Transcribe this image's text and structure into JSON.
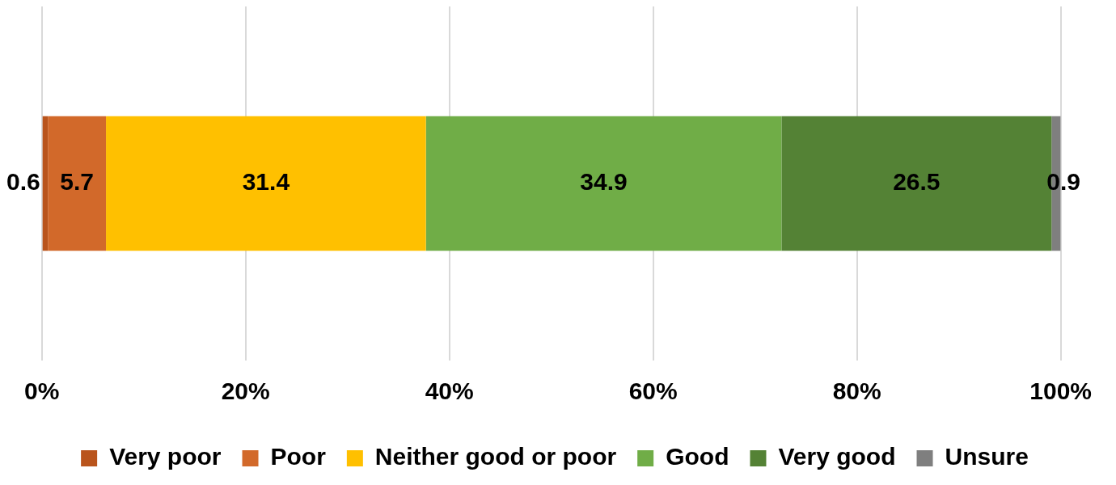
{
  "chart_data": {
    "type": "bar",
    "orientation": "horizontal",
    "stacked": true,
    "categories": [
      null
    ],
    "series": [
      {
        "name": "Very poor",
        "color": "#b9541c",
        "values": [
          0.6
        ]
      },
      {
        "name": "Poor",
        "color": "#d2692a",
        "values": [
          5.7
        ]
      },
      {
        "name": "Neither good or poor",
        "color": "#ffc000",
        "values": [
          31.4
        ]
      },
      {
        "name": "Good",
        "color": "#70ad47",
        "values": [
          34.9
        ]
      },
      {
        "name": "Very good",
        "color": "#548235",
        "values": [
          26.5
        ]
      },
      {
        "name": "Unsure",
        "color": "#7f7f7f",
        "values": [
          0.9
        ]
      }
    ],
    "xlim": [
      0,
      100
    ],
    "xticks": [
      {
        "value": 0,
        "label": "0%"
      },
      {
        "value": 20,
        "label": "20%"
      },
      {
        "value": 40,
        "label": "40%"
      },
      {
        "value": 60,
        "label": "60%"
      },
      {
        "value": 80,
        "label": "80%"
      },
      {
        "value": 100,
        "label": "100%"
      }
    ],
    "grid": "x",
    "legend": "bottom",
    "data_labels": true
  }
}
